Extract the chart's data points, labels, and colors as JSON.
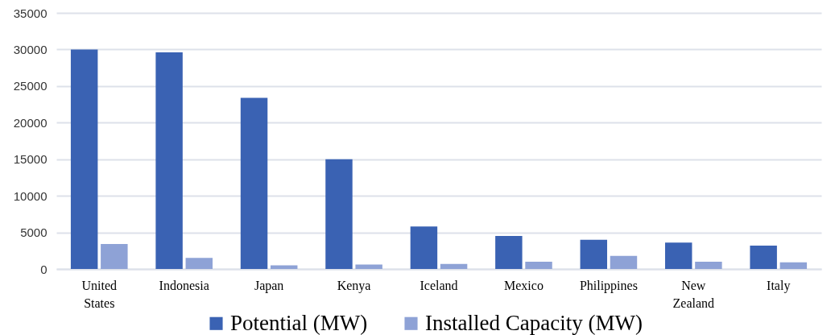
{
  "chart_data": {
    "type": "bar",
    "categories": [
      "United States",
      "Indonesia",
      "Japan",
      "Kenya",
      "Iceland",
      "Mexico",
      "Philippines",
      "New Zealand",
      "Italy",
      null,
      null
    ],
    "series": [
      {
        "name": "Potential (MW)",
        "color": "#3a62b3",
        "values": [
          30000,
          29600,
          23400,
          15000,
          5800,
          4500,
          4000,
          3600,
          3200,
          null,
          null
        ]
      },
      {
        "name": "Installed Capacity  (MW)",
        "color": "#8ea2d6",
        "values": [
          3400,
          1500,
          500,
          600,
          700,
          1000,
          1800,
          1000,
          900,
          null,
          null
        ]
      }
    ],
    "ylim": [
      0,
      35000
    ],
    "yticks": [
      0,
      5000,
      10000,
      15000,
      20000,
      25000,
      30000,
      35000
    ],
    "grid": "y",
    "legend": "bottom"
  }
}
